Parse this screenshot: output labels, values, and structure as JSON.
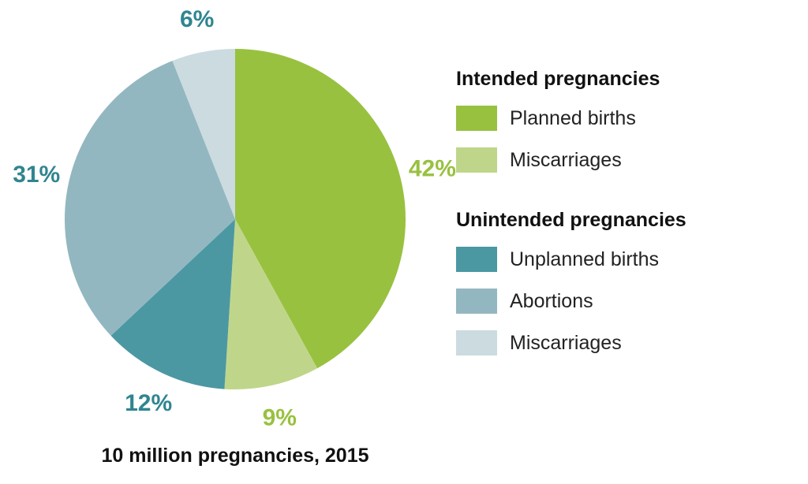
{
  "chart_data": {
    "type": "pie",
    "caption": "10 million pregnancies, 2015",
    "slices": [
      {
        "group": "Intended pregnancies",
        "label": "Planned births",
        "value": 42,
        "display": "42%",
        "color": "#98c140",
        "label_color": "#98c140"
      },
      {
        "group": "Intended pregnancies",
        "label": "Miscarriages",
        "value": 9,
        "display": "9%",
        "color": "#bfd68a",
        "label_color": "#98c140"
      },
      {
        "group": "Unintended pregnancies",
        "label": "Unplanned births",
        "value": 12,
        "display": "12%",
        "color": "#4b98a3",
        "label_color": "#2f8590"
      },
      {
        "group": "Unintended pregnancies",
        "label": "Abortions",
        "value": 31,
        "display": "31%",
        "color": "#93b7c0",
        "label_color": "#2f8590"
      },
      {
        "group": "Unintended pregnancies",
        "label": "Miscarriages",
        "value": 6,
        "display": "6%",
        "color": "#cbdbe0",
        "label_color": "#2f8590"
      }
    ],
    "legend": {
      "groups": [
        {
          "title": "Intended pregnancies",
          "items": [
            {
              "label": "Planned births",
              "color": "#98c140"
            },
            {
              "label": "Miscarriages",
              "color": "#bfd68a"
            }
          ]
        },
        {
          "title": "Unintended pregnancies",
          "items": [
            {
              "label": "Unplanned births",
              "color": "#4b98a3"
            },
            {
              "label": "Abortions",
              "color": "#93b7c0"
            },
            {
              "label": "Miscarriages",
              "color": "#cbdbe0"
            }
          ]
        }
      ]
    }
  }
}
